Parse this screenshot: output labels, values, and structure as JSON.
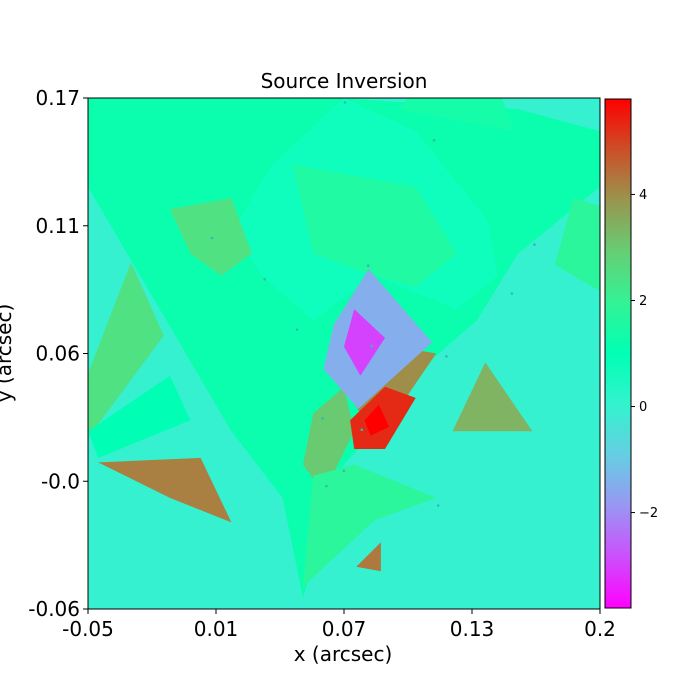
{
  "chart_data": {
    "type": "heatmap",
    "title": "Source Inversion",
    "xlabel": "x (arcsec)",
    "ylabel": "y (arcsec)",
    "xlim": [
      -0.05,
      0.2
    ],
    "ylim": [
      -0.06,
      0.17
    ],
    "x_ticks": [
      "-0.05",
      "0.01",
      "0.07",
      "0.13",
      "0.2"
    ],
    "y_ticks": [
      "-0.06",
      "-0.0",
      "0.06",
      "0.11",
      "0.17"
    ],
    "colorbar": {
      "colormap": "rainbow",
      "range": [
        -3.8,
        5.8
      ],
      "ticks": [
        "4",
        "2",
        "0",
        "−2"
      ]
    },
    "background_value": 0.0,
    "regions": [
      {
        "value": 1.2,
        "points": [
          [
            -0.05,
            0.17
          ],
          [
            0.03,
            0.17
          ],
          [
            0.07,
            0.17
          ],
          [
            0.16,
            0.165
          ],
          [
            0.2,
            0.155
          ],
          [
            0.2,
            0.13
          ],
          [
            0.16,
            0.1
          ],
          [
            0.14,
            0.07
          ],
          [
            0.115,
            0.05
          ],
          [
            0.095,
            0.025
          ],
          [
            0.075,
            0.005
          ],
          [
            0.055,
            -0.055
          ],
          [
            0.045,
            -0.01
          ],
          [
            0.02,
            0.02
          ],
          [
            -0.05,
            0.13
          ]
        ]
      },
      {
        "value": 0.7,
        "points": [
          [
            0.075,
            0.17
          ],
          [
            0.11,
            0.155
          ],
          [
            0.145,
            0.115
          ],
          [
            0.15,
            0.09
          ],
          [
            0.13,
            0.075
          ],
          [
            0.09,
            0.09
          ],
          [
            0.06,
            0.07
          ],
          [
            0.035,
            0.09
          ],
          [
            0.02,
            0.11
          ],
          [
            0.04,
            0.14
          ]
        ]
      },
      {
        "value": 1.6,
        "points": [
          [
            0.05,
            0.14
          ],
          [
            0.11,
            0.13
          ],
          [
            0.13,
            0.1
          ],
          [
            0.11,
            0.085
          ],
          [
            0.09,
            0.09
          ],
          [
            0.06,
            0.1
          ]
        ]
      },
      {
        "value": 2.5,
        "points": [
          [
            -0.01,
            0.12
          ],
          [
            0.02,
            0.125
          ],
          [
            0.03,
            0.1
          ],
          [
            0.015,
            0.09
          ],
          [
            0.0,
            0.1
          ]
        ]
      },
      {
        "value": 2.8,
        "points": [
          [
            0.087,
            0.093
          ],
          [
            0.118,
            0.06
          ],
          [
            0.088,
            0.058
          ],
          [
            0.07,
            0.068
          ]
        ]
      },
      {
        "value": 4.0,
        "points": [
          [
            0.09,
            0.06
          ],
          [
            0.12,
            0.055
          ],
          [
            0.1,
            0.028
          ],
          [
            0.085,
            0.025
          ],
          [
            0.075,
            0.04
          ]
        ]
      },
      {
        "value": 3.0,
        "points": [
          [
            0.06,
            0.028
          ],
          [
            0.075,
            0.04
          ],
          [
            0.08,
            0.02
          ],
          [
            0.065,
            -0.008
          ],
          [
            0.055,
            0.005
          ]
        ]
      },
      {
        "value": 1.8,
        "points": [
          [
            0.06,
            0.0
          ],
          [
            0.08,
            0.005
          ],
          [
            0.12,
            -0.01
          ],
          [
            0.09,
            -0.02
          ],
          [
            0.055,
            -0.05
          ]
        ]
      },
      {
        "value": -1.5,
        "points": [
          [
            0.07,
            0.068
          ],
          [
            0.087,
            0.093
          ],
          [
            0.118,
            0.06
          ],
          [
            0.082,
            0.03
          ],
          [
            0.065,
            0.048
          ]
        ]
      },
      {
        "value": -3.0,
        "points": [
          [
            0.08,
            0.075
          ],
          [
            0.095,
            0.062
          ],
          [
            0.083,
            0.045
          ],
          [
            0.075,
            0.058
          ]
        ]
      },
      {
        "value": 5.3,
        "points": [
          [
            0.078,
            0.025
          ],
          [
            0.095,
            0.04
          ],
          [
            0.11,
            0.035
          ],
          [
            0.095,
            0.012
          ],
          [
            0.08,
            0.012
          ]
        ]
      },
      {
        "value": 5.8,
        "points": [
          [
            0.085,
            0.025
          ],
          [
            0.092,
            0.032
          ],
          [
            0.097,
            0.022
          ],
          [
            0.088,
            0.018
          ]
        ]
      },
      {
        "value": 1.8,
        "points": [
          [
            0.205,
            0.12
          ],
          [
            0.2,
            0.083
          ],
          [
            0.178,
            0.095
          ],
          [
            0.187,
            0.125
          ]
        ]
      },
      {
        "value": 1.4,
        "points": [
          [
            0.152,
            0.17
          ],
          [
            0.158,
            0.155
          ],
          [
            0.102,
            0.165
          ],
          [
            0.106,
            0.17
          ]
        ]
      },
      {
        "value": 2.5,
        "points": [
          [
            -0.029,
            0.096
          ],
          [
            -0.05,
            0.046
          ],
          [
            -0.05,
            0.017
          ],
          [
            -0.013,
            0.063
          ]
        ]
      },
      {
        "value": 1.0,
        "points": [
          [
            -0.05,
            0.02
          ],
          [
            -0.01,
            0.045
          ],
          [
            0.0,
            0.025
          ],
          [
            -0.045,
            0.008
          ]
        ]
      },
      {
        "value": 4.2,
        "points": [
          [
            -0.045,
            0.006
          ],
          [
            0.005,
            0.008
          ],
          [
            0.02,
            -0.021
          ],
          [
            -0.01,
            -0.01
          ]
        ]
      },
      {
        "value": 3.4,
        "points": [
          [
            0.144,
            0.051
          ],
          [
            0.167,
            0.02
          ],
          [
            0.128,
            0.02
          ]
        ]
      },
      {
        "value": 4.3,
        "points": [
          [
            0.081,
            -0.041
          ],
          [
            0.093,
            -0.043
          ],
          [
            0.093,
            -0.03
          ]
        ]
      }
    ],
    "mesh_points": [
      [
        0.0755,
        0.168
      ],
      [
        0.119,
        0.151
      ],
      [
        0.0105,
        0.107
      ],
      [
        0.0868,
        0.0945
      ],
      [
        0.0363,
        0.0884
      ],
      [
        0.168,
        0.104
      ],
      [
        0.157,
        0.082
      ],
      [
        0.0521,
        0.0657
      ],
      [
        0.0885,
        0.0583
      ],
      [
        0.125,
        0.0537
      ],
      [
        0.0645,
        0.0259
      ],
      [
        0.0837,
        0.0207
      ],
      [
        0.0664,
        -0.0047
      ],
      [
        0.0749,
        0.0022
      ],
      [
        0.121,
        -0.0134
      ]
    ]
  }
}
